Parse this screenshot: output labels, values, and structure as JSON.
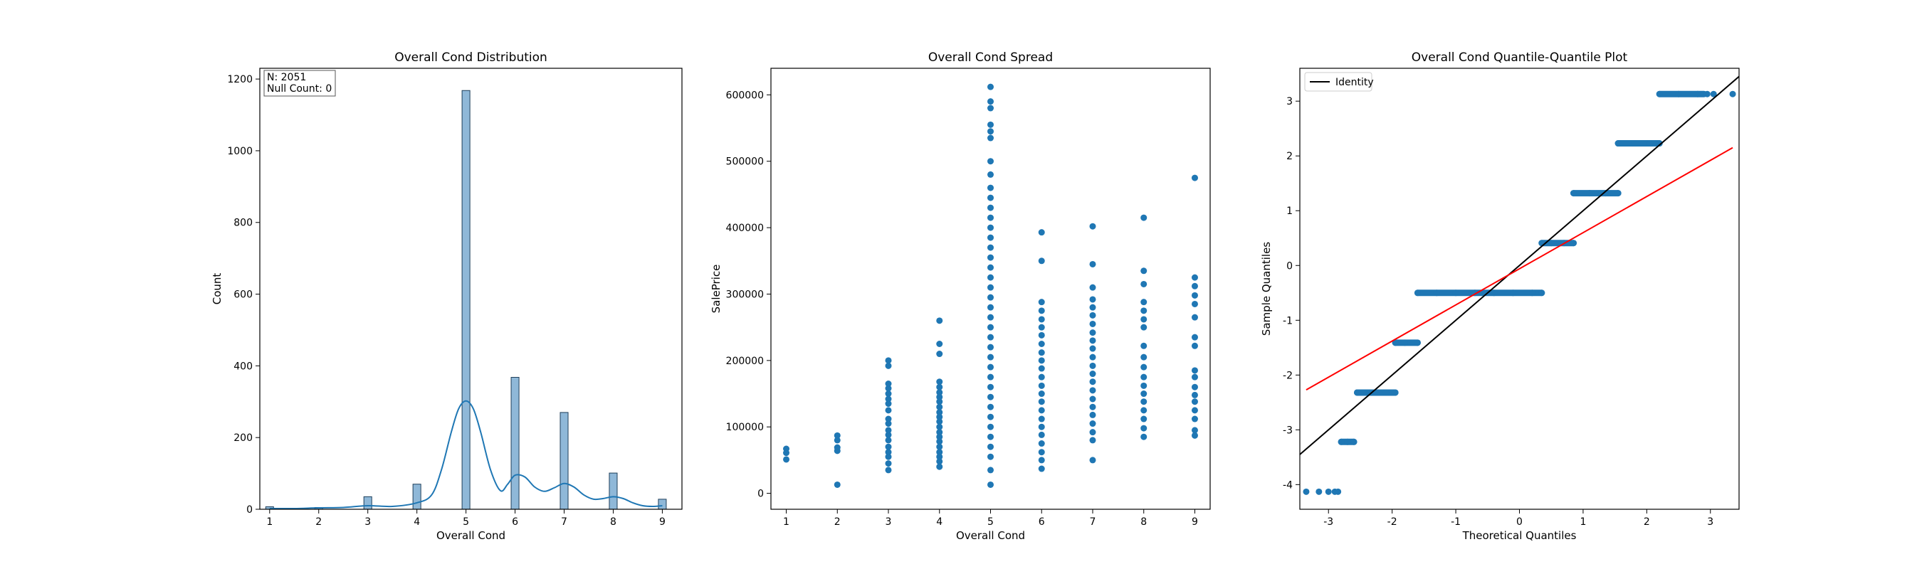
{
  "colors": {
    "bar_fill": "#8fb8d8",
    "bar_edge": "#1f3f5a",
    "primary": "#1f77b4",
    "kde": "#1f77b4",
    "identity": "#000000",
    "fit_line": "#ff0000",
    "frame": "#000000",
    "background": "#ffffff"
  },
  "chart_data": [
    {
      "type": "bar",
      "title": "Overall Cond Distribution",
      "xlabel": "Overall Cond",
      "ylabel": "Count",
      "xlim": [
        0.8,
        9.4
      ],
      "ylim": [
        0,
        1230
      ],
      "x_ticks": [
        1,
        2,
        3,
        4,
        5,
        6,
        7,
        8,
        9
      ],
      "y_ticks": [
        0,
        200,
        400,
        600,
        800,
        1000,
        1200
      ],
      "categories": [
        1,
        2,
        3,
        4,
        5,
        6,
        7,
        8,
        9
      ],
      "values": [
        7,
        5,
        35,
        70,
        1168,
        368,
        270,
        101,
        28
      ],
      "bar_width": 0.16,
      "kde": {
        "x": [
          1,
          1.5,
          2,
          2.5,
          3,
          3.5,
          4,
          4.3,
          4.5,
          4.7,
          4.85,
          5,
          5.15,
          5.3,
          5.5,
          5.7,
          5.85,
          6,
          6.2,
          6.4,
          6.6,
          6.8,
          7,
          7.2,
          7.4,
          7.6,
          7.8,
          8,
          8.2,
          8.4,
          8.6,
          8.8,
          9
        ],
        "y": [
          2,
          2,
          4,
          5,
          10,
          8,
          18,
          40,
          110,
          215,
          280,
          302,
          280,
          215,
          110,
          52,
          70,
          95,
          90,
          62,
          50,
          60,
          72,
          62,
          40,
          28,
          30,
          35,
          30,
          18,
          10,
          8,
          10
        ]
      },
      "annotation": [
        "N: 2051",
        "Null Count: 0"
      ]
    },
    {
      "type": "scatter",
      "title": "Overall Cond Spread",
      "xlabel": "Overall Cond",
      "ylabel": "SalePrice",
      "xlim": [
        0.7,
        9.3
      ],
      "ylim": [
        -24000,
        640000
      ],
      "x_ticks": [
        1,
        2,
        3,
        4,
        5,
        6,
        7,
        8,
        9
      ],
      "y_ticks": [
        0,
        100000,
        200000,
        300000,
        400000,
        500000,
        600000
      ],
      "points": [
        [
          1,
          51000
        ],
        [
          1,
          61000
        ],
        [
          1,
          67000
        ],
        [
          2,
          13000
        ],
        [
          2,
          64000
        ],
        [
          2,
          69000
        ],
        [
          2,
          80000
        ],
        [
          2,
          87000
        ],
        [
          3,
          35000
        ],
        [
          3,
          45000
        ],
        [
          3,
          55000
        ],
        [
          3,
          62000
        ],
        [
          3,
          70000
        ],
        [
          3,
          80000
        ],
        [
          3,
          88000
        ],
        [
          3,
          95000
        ],
        [
          3,
          105000
        ],
        [
          3,
          112000
        ],
        [
          3,
          125000
        ],
        [
          3,
          135000
        ],
        [
          3,
          142000
        ],
        [
          3,
          150000
        ],
        [
          3,
          158000
        ],
        [
          3,
          165000
        ],
        [
          3,
          192000
        ],
        [
          3,
          200000
        ],
        [
          4,
          40000
        ],
        [
          4,
          48000
        ],
        [
          4,
          55000
        ],
        [
          4,
          62000
        ],
        [
          4,
          70000
        ],
        [
          4,
          78000
        ],
        [
          4,
          85000
        ],
        [
          4,
          92000
        ],
        [
          4,
          100000
        ],
        [
          4,
          108000
        ],
        [
          4,
          115000
        ],
        [
          4,
          122000
        ],
        [
          4,
          130000
        ],
        [
          4,
          138000
        ],
        [
          4,
          145000
        ],
        [
          4,
          152000
        ],
        [
          4,
          160000
        ],
        [
          4,
          168000
        ],
        [
          4,
          210000
        ],
        [
          4,
          225000
        ],
        [
          4,
          260000
        ],
        [
          5,
          13000
        ],
        [
          5,
          35000
        ],
        [
          5,
          55000
        ],
        [
          5,
          70000
        ],
        [
          5,
          85000
        ],
        [
          5,
          100000
        ],
        [
          5,
          115000
        ],
        [
          5,
          130000
        ],
        [
          5,
          145000
        ],
        [
          5,
          160000
        ],
        [
          5,
          175000
        ],
        [
          5,
          190000
        ],
        [
          5,
          205000
        ],
        [
          5,
          220000
        ],
        [
          5,
          235000
        ],
        [
          5,
          250000
        ],
        [
          5,
          265000
        ],
        [
          5,
          280000
        ],
        [
          5,
          295000
        ],
        [
          5,
          310000
        ],
        [
          5,
          325000
        ],
        [
          5,
          340000
        ],
        [
          5,
          355000
        ],
        [
          5,
          370000
        ],
        [
          5,
          385000
        ],
        [
          5,
          400000
        ],
        [
          5,
          415000
        ],
        [
          5,
          430000
        ],
        [
          5,
          445000
        ],
        [
          5,
          460000
        ],
        [
          5,
          480000
        ],
        [
          5,
          500000
        ],
        [
          5,
          535000
        ],
        [
          5,
          545000
        ],
        [
          5,
          555000
        ],
        [
          5,
          580000
        ],
        [
          5,
          590000
        ],
        [
          5,
          612000
        ],
        [
          6,
          37000
        ],
        [
          6,
          50000
        ],
        [
          6,
          62000
        ],
        [
          6,
          75000
        ],
        [
          6,
          88000
        ],
        [
          6,
          100000
        ],
        [
          6,
          112000
        ],
        [
          6,
          125000
        ],
        [
          6,
          138000
        ],
        [
          6,
          150000
        ],
        [
          6,
          162000
        ],
        [
          6,
          175000
        ],
        [
          6,
          188000
        ],
        [
          6,
          200000
        ],
        [
          6,
          212000
        ],
        [
          6,
          225000
        ],
        [
          6,
          238000
        ],
        [
          6,
          250000
        ],
        [
          6,
          262000
        ],
        [
          6,
          275000
        ],
        [
          6,
          288000
        ],
        [
          6,
          350000
        ],
        [
          6,
          393000
        ],
        [
          7,
          50000
        ],
        [
          7,
          80000
        ],
        [
          7,
          92000
        ],
        [
          7,
          105000
        ],
        [
          7,
          118000
        ],
        [
          7,
          130000
        ],
        [
          7,
          142000
        ],
        [
          7,
          155000
        ],
        [
          7,
          168000
        ],
        [
          7,
          180000
        ],
        [
          7,
          192000
        ],
        [
          7,
          205000
        ],
        [
          7,
          218000
        ],
        [
          7,
          230000
        ],
        [
          7,
          242000
        ],
        [
          7,
          255000
        ],
        [
          7,
          268000
        ],
        [
          7,
          280000
        ],
        [
          7,
          292000
        ],
        [
          7,
          310000
        ],
        [
          7,
          345000
        ],
        [
          7,
          402000
        ],
        [
          8,
          85000
        ],
        [
          8,
          98000
        ],
        [
          8,
          112000
        ],
        [
          8,
          125000
        ],
        [
          8,
          138000
        ],
        [
          8,
          150000
        ],
        [
          8,
          162000
        ],
        [
          8,
          175000
        ],
        [
          8,
          190000
        ],
        [
          8,
          205000
        ],
        [
          8,
          222000
        ],
        [
          8,
          250000
        ],
        [
          8,
          262000
        ],
        [
          8,
          275000
        ],
        [
          8,
          288000
        ],
        [
          8,
          315000
        ],
        [
          8,
          335000
        ],
        [
          8,
          415000
        ],
        [
          9,
          87000
        ],
        [
          9,
          95000
        ],
        [
          9,
          112000
        ],
        [
          9,
          125000
        ],
        [
          9,
          138000
        ],
        [
          9,
          148000
        ],
        [
          9,
          160000
        ],
        [
          9,
          175000
        ],
        [
          9,
          185000
        ],
        [
          9,
          222000
        ],
        [
          9,
          235000
        ],
        [
          9,
          265000
        ],
        [
          9,
          285000
        ],
        [
          9,
          298000
        ],
        [
          9,
          312000
        ],
        [
          9,
          325000
        ],
        [
          9,
          475000
        ]
      ]
    },
    {
      "type": "scatter",
      "title": "Overall Cond Quantile-Quantile Plot",
      "xlabel": "Theoretical Quantiles",
      "ylabel": "Sample Quantiles",
      "xlim": [
        -3.45,
        3.45
      ],
      "ylim": [
        -4.45,
        3.6
      ],
      "x_ticks": [
        -3,
        -2,
        -1,
        0,
        1,
        2,
        3
      ],
      "y_ticks": [
        -4,
        -3,
        -2,
        -1,
        0,
        1,
        2,
        3
      ],
      "legend": "Identity",
      "legend_position": "top-left",
      "identity_line": [
        [
          -3.45,
          -3.45
        ],
        [
          3.45,
          3.45
        ]
      ],
      "fit_line": [
        [
          -3.35,
          -2.27
        ],
        [
          3.35,
          2.15
        ]
      ],
      "points": [
        [
          -3.35,
          -4.13
        ],
        [
          -3.15,
          -4.13
        ],
        [
          -3.0,
          -4.13
        ],
        [
          -2.9,
          -4.13
        ],
        [
          -2.85,
          -4.13
        ],
        [
          -2.8,
          -3.22
        ],
        [
          -2.7,
          -3.22
        ],
        [
          -2.6,
          -3.22
        ],
        [
          -2.55,
          -2.32
        ],
        [
          -2.35,
          -2.32
        ],
        [
          -2.1,
          -2.32
        ],
        [
          -1.95,
          -2.32
        ],
        [
          -1.95,
          -1.41
        ],
        [
          -1.8,
          -1.41
        ],
        [
          -1.6,
          -1.41
        ],
        [
          -1.6,
          -0.5
        ],
        [
          -1.3,
          -0.5
        ],
        [
          -1.0,
          -0.5
        ],
        [
          -0.7,
          -0.5
        ],
        [
          -0.4,
          -0.5
        ],
        [
          -0.1,
          -0.5
        ],
        [
          0.2,
          -0.5
        ],
        [
          0.35,
          -0.5
        ],
        [
          0.35,
          0.41
        ],
        [
          0.5,
          0.41
        ],
        [
          0.7,
          0.41
        ],
        [
          0.85,
          0.41
        ],
        [
          0.85,
          1.32
        ],
        [
          1.1,
          1.32
        ],
        [
          1.35,
          1.32
        ],
        [
          1.55,
          1.32
        ],
        [
          1.55,
          2.23
        ],
        [
          1.8,
          2.23
        ],
        [
          2.05,
          2.23
        ],
        [
          2.2,
          2.23
        ],
        [
          2.2,
          3.13
        ],
        [
          2.5,
          3.13
        ],
        [
          2.8,
          3.13
        ],
        [
          2.95,
          3.13
        ],
        [
          3.05,
          3.13
        ],
        [
          3.35,
          3.13
        ]
      ],
      "runs": [
        [
          -2.8,
          -2.6,
          -3.22
        ],
        [
          -2.55,
          -1.95,
          -2.32
        ],
        [
          -1.95,
          -1.6,
          -1.41
        ],
        [
          -1.6,
          0.35,
          -0.5
        ],
        [
          0.35,
          0.85,
          0.41
        ],
        [
          0.85,
          1.55,
          1.32
        ],
        [
          1.55,
          2.2,
          2.23
        ],
        [
          2.2,
          2.9,
          3.13
        ]
      ]
    }
  ]
}
